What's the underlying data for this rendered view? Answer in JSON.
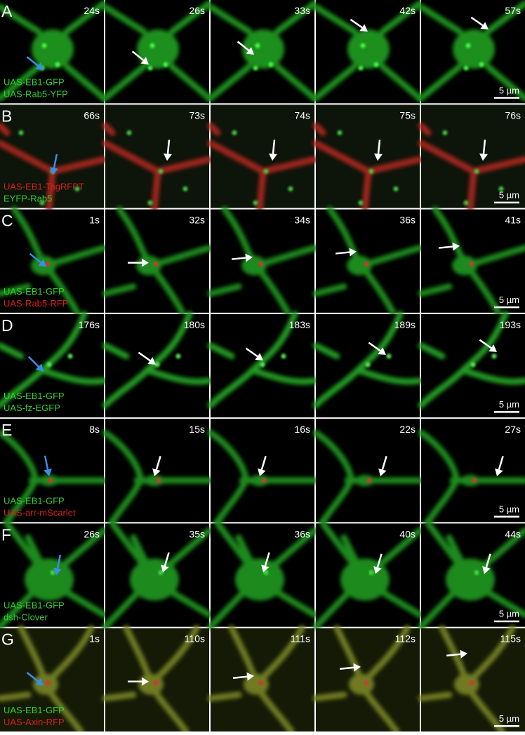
{
  "panels": [
    {
      "letter": "A",
      "times": [
        "24s",
        "26s",
        "33s",
        "42s",
        "57s"
      ],
      "labels": [
        {
          "text": "UAS-EB1-GFP",
          "color": "#33cc33"
        },
        {
          "text": "UAS-Rab5-YFP",
          "color": "#33cc33"
        }
      ],
      "scale_bar": "5 µm"
    },
    {
      "letter": "B",
      "times": [
        "66s",
        "73s",
        "74s",
        "75s",
        "76s"
      ],
      "labels": [
        {
          "text": "UAS-EB1-TagRFPT",
          "color": "#d42020"
        },
        {
          "text": "EYFP-Rab5",
          "color": "#33cc33"
        }
      ],
      "scale_bar": "5 µm"
    },
    {
      "letter": "C",
      "times": [
        "1s",
        "32s",
        "34s",
        "36s",
        "41s"
      ],
      "labels": [
        {
          "text": "UAS-EB1-GFP",
          "color": "#33cc33"
        },
        {
          "text": "UAS-Rab5-RFP",
          "color": "#d42020"
        }
      ],
      "scale_bar": "5 µm"
    },
    {
      "letter": "D",
      "times": [
        "176s",
        "180s",
        "183s",
        "189s",
        "193s"
      ],
      "labels": [
        {
          "text": "UAS-EB1-GFP",
          "color": "#33cc33"
        },
        {
          "text": "UAS-fz-EGFP",
          "color": "#33cc33"
        }
      ],
      "scale_bar": "5 µm"
    },
    {
      "letter": "E",
      "times": [
        "8s",
        "15s",
        "16s",
        "22s",
        "27s"
      ],
      "labels": [
        {
          "text": "UAS-EB1-GFP",
          "color": "#33cc33"
        },
        {
          "text": "UAS-arr-mScarlet",
          "color": "#d42020"
        }
      ],
      "scale_bar": "5 µm"
    },
    {
      "letter": "F",
      "times": [
        "26s",
        "35s",
        "36s",
        "40s",
        "44s"
      ],
      "labels": [
        {
          "text": "UAS-EB1-GFP",
          "color": "#33cc33"
        },
        {
          "text": "dsh-Clover",
          "color": "#33cc33"
        }
      ],
      "scale_bar": "5 µm"
    },
    {
      "letter": "G",
      "times": [
        "1s",
        "110s",
        "111s",
        "112s",
        "115s"
      ],
      "labels": [
        {
          "text": "UAS-EB1-GFP",
          "color": "#33cc33"
        },
        {
          "text": "UAS-Axin-RFP",
          "color": "#d42020"
        }
      ],
      "scale_bar": "5 µm"
    }
  ]
}
